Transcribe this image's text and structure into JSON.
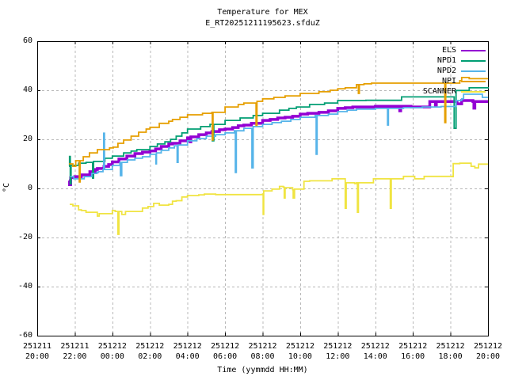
{
  "title": "Temperature for MEX",
  "subtitle": "E_RT20251211195623.sfduZ",
  "axes": {
    "y": {
      "label": "°C",
      "min": -60,
      "max": 60,
      "tick_step": 20,
      "ticks": [
        60,
        40,
        20,
        0,
        -20,
        -40,
        -60
      ]
    },
    "x": {
      "label": "Time (yymmdd HH:MM)",
      "ticks": [
        {
          "date": "251211",
          "time": "20:00"
        },
        {
          "date": "251211",
          "time": "22:00"
        },
        {
          "date": "251212",
          "time": "00:00"
        },
        {
          "date": "251212",
          "time": "02:00"
        },
        {
          "date": "251212",
          "time": "04:00"
        },
        {
          "date": "251212",
          "time": "06:00"
        },
        {
          "date": "251212",
          "time": "08:00"
        },
        {
          "date": "251212",
          "time": "10:00"
        },
        {
          "date": "251212",
          "time": "12:00"
        },
        {
          "date": "251212",
          "time": "14:00"
        },
        {
          "date": "251212",
          "time": "16:00"
        },
        {
          "date": "251212",
          "time": "18:00"
        },
        {
          "date": "251212",
          "time": "20:00"
        }
      ]
    }
  },
  "legend": {
    "position": "top-right",
    "entries": [
      {
        "label": "ELS",
        "color": "#9400d3"
      },
      {
        "label": "NPD1",
        "color": "#009e73"
      },
      {
        "label": "NPD2",
        "color": "#56b4e9"
      },
      {
        "label": "NPI",
        "color": "#e69f00"
      },
      {
        "label": "SCANNER",
        "color": "#f0e442"
      }
    ]
  },
  "colors": {
    "background": "#ffffff",
    "border": "#000000",
    "grid": "#b8b8b8",
    "text": "#000000"
  },
  "chart_data": {
    "type": "line",
    "title": "Temperature for MEX",
    "subtitle": "E_RT20251211195623.sfduZ",
    "xlabel": "Time (yymmdd HH:MM)",
    "ylabel": "°C",
    "ylim": [
      -60,
      60
    ],
    "x_unit": "hours since 251211 20:00",
    "xlim": [
      0,
      24
    ],
    "grid": true,
    "legend_position": "top-right",
    "line_mode": "steps",
    "series": [
      {
        "name": "ELS",
        "color": "#9400d3",
        "width": 3.5,
        "points": [
          [
            1.69,
            3.2
          ],
          [
            1.72,
            1.5
          ],
          [
            1.78,
            4.4
          ],
          [
            2.0,
            4.8
          ],
          [
            2.35,
            5.5
          ],
          [
            2.8,
            6.8
          ],
          [
            3.1,
            7.7
          ],
          [
            3.2,
            8.1
          ],
          [
            3.55,
            9.0
          ],
          [
            3.8,
            9.7
          ],
          [
            4.0,
            10.8
          ],
          [
            4.35,
            12.0
          ],
          [
            4.77,
            13.2
          ],
          [
            5.2,
            14.2
          ],
          [
            5.6,
            14.8
          ],
          [
            6.0,
            15.3
          ],
          [
            6.3,
            16.1
          ],
          [
            6.6,
            17.1
          ],
          [
            7.0,
            18.1
          ],
          [
            7.2,
            18.4
          ],
          [
            7.6,
            19.4
          ],
          [
            8.0,
            20.6
          ],
          [
            8.15,
            19.0
          ],
          [
            8.18,
            21.0
          ],
          [
            8.6,
            21.9
          ],
          [
            9.0,
            22.6
          ],
          [
            9.3,
            23.2
          ],
          [
            9.7,
            23.9
          ],
          [
            10.0,
            24.2
          ],
          [
            10.4,
            24.8
          ],
          [
            10.7,
            25.5
          ],
          [
            11.0,
            25.8
          ],
          [
            11.4,
            26.5
          ],
          [
            12.0,
            27.7
          ],
          [
            12.4,
            28.1
          ],
          [
            12.8,
            28.7
          ],
          [
            13.2,
            29.0
          ],
          [
            13.6,
            29.4
          ],
          [
            14.0,
            30.3
          ],
          [
            14.4,
            30.6
          ],
          [
            15.0,
            31.0
          ],
          [
            15.5,
            31.6
          ],
          [
            16.0,
            32.6
          ],
          [
            16.4,
            32.9
          ],
          [
            16.8,
            33.2
          ],
          [
            18.0,
            33.5
          ],
          [
            19.0,
            33.5
          ],
          [
            19.3,
            31.6
          ],
          [
            19.35,
            33.5
          ],
          [
            19.9,
            33.2
          ],
          [
            20.9,
            35.4
          ],
          [
            21.2,
            33.9
          ],
          [
            21.25,
            35.4
          ],
          [
            22.0,
            35.4
          ],
          [
            22.35,
            34.5
          ],
          [
            22.6,
            35.8
          ],
          [
            23.2,
            35.4
          ],
          [
            23.25,
            32.7
          ],
          [
            23.3,
            35.4
          ],
          [
            24.0,
            35.4
          ]
        ]
      },
      {
        "name": "NPD1",
        "color": "#009e73",
        "width": 1.8,
        "points": [
          [
            1.69,
            9.0
          ],
          [
            1.72,
            13.0
          ],
          [
            1.76,
            1.9
          ],
          [
            1.8,
            9.4
          ],
          [
            2.2,
            10.3
          ],
          [
            2.6,
            10.6
          ],
          [
            2.93,
            10.6
          ],
          [
            2.95,
            4.2
          ],
          [
            3.0,
            11.0
          ],
          [
            3.6,
            12.3
          ],
          [
            4.0,
            13.2
          ],
          [
            4.6,
            14.5
          ],
          [
            5.0,
            15.2
          ],
          [
            5.3,
            15.8
          ],
          [
            6.0,
            17.1
          ],
          [
            6.4,
            18.1
          ],
          [
            6.8,
            19.0
          ],
          [
            7.1,
            20.0
          ],
          [
            7.4,
            21.3
          ],
          [
            7.7,
            22.6
          ],
          [
            8.0,
            24.2
          ],
          [
            8.7,
            25.2
          ],
          [
            9.2,
            26.1
          ],
          [
            9.32,
            19.4
          ],
          [
            9.4,
            26.1
          ],
          [
            10.0,
            27.7
          ],
          [
            10.8,
            28.7
          ],
          [
            11.5,
            29.7
          ],
          [
            12.0,
            30.6
          ],
          [
            12.9,
            31.9
          ],
          [
            13.4,
            32.6
          ],
          [
            13.8,
            33.2
          ],
          [
            14.5,
            34.2
          ],
          [
            15.3,
            34.8
          ],
          [
            16.0,
            35.8
          ],
          [
            17.5,
            35.9
          ],
          [
            19.4,
            37.3
          ],
          [
            21.0,
            37.3
          ],
          [
            22.1,
            37.3
          ],
          [
            22.2,
            24.5
          ],
          [
            22.3,
            39.9
          ],
          [
            23.0,
            41.0
          ],
          [
            24.0,
            41.3
          ]
        ]
      },
      {
        "name": "NPD2",
        "color": "#56b4e9",
        "width": 1.8,
        "points": [
          [
            1.75,
            4.8
          ],
          [
            1.95,
            3.9
          ],
          [
            2.5,
            4.8
          ],
          [
            2.9,
            6.1
          ],
          [
            3.18,
            6.5
          ],
          [
            3.25,
            6.8
          ],
          [
            3.5,
            7.7
          ],
          [
            3.54,
            22.5
          ],
          [
            3.58,
            7.7
          ],
          [
            4.0,
            9.4
          ],
          [
            4.4,
            10.6
          ],
          [
            4.43,
            5.2
          ],
          [
            4.5,
            10.6
          ],
          [
            4.8,
            11.6
          ],
          [
            5.2,
            12.3
          ],
          [
            5.6,
            12.9
          ],
          [
            6.0,
            13.9
          ],
          [
            6.3,
            13.9
          ],
          [
            6.32,
            10.0
          ],
          [
            6.35,
            14.5
          ],
          [
            6.6,
            15.5
          ],
          [
            7.0,
            16.5
          ],
          [
            7.3,
            17.4
          ],
          [
            7.45,
            10.6
          ],
          [
            7.5,
            17.7
          ],
          [
            8.0,
            19.4
          ],
          [
            8.5,
            20.3
          ],
          [
            9.0,
            21.3
          ],
          [
            9.5,
            21.9
          ],
          [
            10.0,
            22.6
          ],
          [
            10.5,
            23.5
          ],
          [
            10.55,
            6.5
          ],
          [
            10.6,
            23.5
          ],
          [
            11.0,
            24.5
          ],
          [
            11.43,
            8.4
          ],
          [
            11.5,
            25.2
          ],
          [
            12.0,
            26.1
          ],
          [
            12.5,
            26.8
          ],
          [
            13.0,
            27.4
          ],
          [
            13.5,
            28.1
          ],
          [
            14.0,
            29.0
          ],
          [
            14.8,
            29.7
          ],
          [
            14.85,
            13.9
          ],
          [
            14.9,
            29.7
          ],
          [
            15.5,
            30.3
          ],
          [
            16.0,
            31.3
          ],
          [
            16.5,
            31.9
          ],
          [
            17.0,
            32.3
          ],
          [
            18.0,
            32.6
          ],
          [
            18.6,
            32.6
          ],
          [
            18.65,
            25.8
          ],
          [
            18.7,
            32.6
          ],
          [
            19.5,
            32.9
          ],
          [
            20.5,
            33.2
          ],
          [
            21.5,
            33.4
          ],
          [
            22.3,
            35.8
          ],
          [
            22.6,
            36.5
          ],
          [
            22.7,
            38.4
          ],
          [
            23.6,
            38.4
          ],
          [
            23.7,
            37.1
          ],
          [
            24.0,
            37.1
          ]
        ]
      },
      {
        "name": "NPI",
        "color": "#e69f00",
        "width": 1.8,
        "points": [
          [
            1.69,
            10.0
          ],
          [
            1.9,
            9.0
          ],
          [
            2.05,
            11.3
          ],
          [
            2.22,
            11.3
          ],
          [
            2.24,
            2.6
          ],
          [
            2.28,
            11.3
          ],
          [
            2.45,
            12.9
          ],
          [
            2.78,
            14.5
          ],
          [
            3.2,
            15.8
          ],
          [
            3.85,
            16.5
          ],
          [
            4.05,
            16.8
          ],
          [
            4.3,
            18.4
          ],
          [
            4.6,
            19.7
          ],
          [
            5.0,
            21.3
          ],
          [
            5.4,
            22.9
          ],
          [
            5.8,
            24.2
          ],
          [
            6.0,
            24.9
          ],
          [
            6.5,
            26.5
          ],
          [
            7.0,
            27.4
          ],
          [
            7.2,
            28.1
          ],
          [
            7.6,
            29.0
          ],
          [
            8.0,
            30.0
          ],
          [
            8.8,
            30.6
          ],
          [
            9.3,
            31.0
          ],
          [
            9.32,
            19.7
          ],
          [
            9.36,
            31.0
          ],
          [
            10.0,
            33.2
          ],
          [
            10.7,
            34.2
          ],
          [
            11.0,
            34.8
          ],
          [
            11.63,
            34.8
          ],
          [
            11.65,
            25.7
          ],
          [
            11.7,
            35.5
          ],
          [
            12.0,
            36.5
          ],
          [
            12.6,
            37.1
          ],
          [
            13.2,
            37.7
          ],
          [
            14.0,
            38.7
          ],
          [
            15.0,
            39.4
          ],
          [
            15.6,
            40.0
          ],
          [
            16.0,
            40.6
          ],
          [
            16.4,
            41.0
          ],
          [
            17.0,
            42.3
          ],
          [
            17.1,
            38.7
          ],
          [
            17.15,
            42.3
          ],
          [
            17.4,
            42.6
          ],
          [
            17.8,
            42.9
          ],
          [
            20.0,
            42.9
          ],
          [
            21.68,
            42.9
          ],
          [
            21.7,
            26.8
          ],
          [
            21.75,
            42.9
          ],
          [
            22.5,
            43.9
          ],
          [
            22.6,
            45.2
          ],
          [
            23.0,
            44.7
          ],
          [
            24.0,
            44.7
          ]
        ]
      },
      {
        "name": "SCANNER",
        "color": "#f0e442",
        "width": 1.8,
        "points": [
          [
            1.73,
            -6.5
          ],
          [
            1.9,
            -7.1
          ],
          [
            2.2,
            -8.7
          ],
          [
            2.35,
            -9.0
          ],
          [
            2.6,
            -9.7
          ],
          [
            3.15,
            -9.7
          ],
          [
            3.2,
            -11.3
          ],
          [
            3.3,
            -10.3
          ],
          [
            3.9,
            -10.3
          ],
          [
            4.0,
            -9.0
          ],
          [
            4.15,
            -9.4
          ],
          [
            4.28,
            -9.4
          ],
          [
            4.3,
            -18.7
          ],
          [
            4.35,
            -9.4
          ],
          [
            4.5,
            -10.6
          ],
          [
            4.65,
            -10.6
          ],
          [
            4.7,
            -9.4
          ],
          [
            5.3,
            -9.4
          ],
          [
            5.6,
            -8.0
          ],
          [
            5.9,
            -7.4
          ],
          [
            6.2,
            -6.1
          ],
          [
            6.5,
            -6.8
          ],
          [
            7.0,
            -6.5
          ],
          [
            7.2,
            -5.2
          ],
          [
            7.4,
            -5.0
          ],
          [
            7.7,
            -3.5
          ],
          [
            8.0,
            -2.9
          ],
          [
            8.6,
            -2.6
          ],
          [
            8.9,
            -2.3
          ],
          [
            9.5,
            -2.5
          ],
          [
            11.0,
            -2.5
          ],
          [
            12.0,
            -2.3
          ],
          [
            12.03,
            -10.6
          ],
          [
            12.06,
            -1.0
          ],
          [
            12.5,
            -0.3
          ],
          [
            12.9,
            0.8
          ],
          [
            13.1,
            0.5
          ],
          [
            13.15,
            -3.9
          ],
          [
            13.2,
            0.3
          ],
          [
            13.6,
            -0.5
          ],
          [
            13.63,
            -3.9
          ],
          [
            13.7,
            -0.3
          ],
          [
            14.2,
            2.9
          ],
          [
            14.5,
            3.1
          ],
          [
            15.7,
            3.9
          ],
          [
            16.35,
            3.9
          ],
          [
            16.4,
            -8.1
          ],
          [
            16.45,
            2.3
          ],
          [
            16.9,
            2.0
          ],
          [
            17.0,
            2.3
          ],
          [
            17.05,
            -9.7
          ],
          [
            17.1,
            2.3
          ],
          [
            17.55,
            2.3
          ],
          [
            17.9,
            3.9
          ],
          [
            18.75,
            3.9
          ],
          [
            18.8,
            -8.1
          ],
          [
            18.85,
            3.9
          ],
          [
            19.5,
            4.9
          ],
          [
            20.1,
            3.9
          ],
          [
            20.6,
            4.9
          ],
          [
            21.9,
            4.9
          ],
          [
            22.1,
            4.8
          ],
          [
            22.15,
            10.1
          ],
          [
            22.5,
            10.3
          ],
          [
            23.1,
            9.0
          ],
          [
            23.3,
            8.4
          ],
          [
            23.5,
            9.9
          ],
          [
            24.0,
            9.9
          ]
        ]
      }
    ]
  }
}
